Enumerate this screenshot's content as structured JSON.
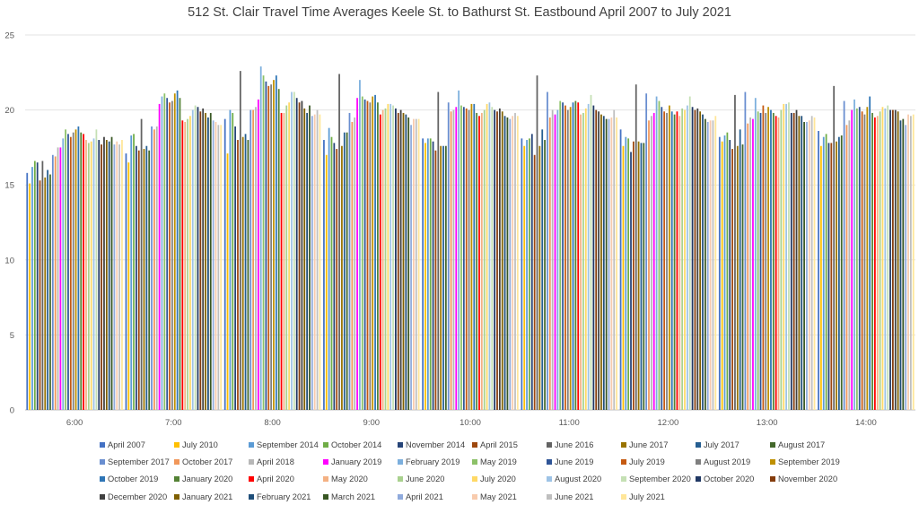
{
  "chart_data": {
    "type": "bar",
    "title": "512 St. Clair Travel Time Averages Keele St. to Bathurst St. Eastbound April 2007 to July 2021",
    "xlabel": "",
    "ylabel": "",
    "ylim": [
      0,
      25
    ],
    "yticks": [
      "0",
      "5",
      "10",
      "15",
      "20",
      "25"
    ],
    "grid": true,
    "legend_position": "bottom",
    "categories": [
      "6:00",
      "7:00",
      "8:00",
      "9:00",
      "10:00",
      "11:00",
      "12:00",
      "13:00",
      "14:00"
    ],
    "series": [
      {
        "name": "April 2007",
        "color": "#4472c4",
        "values": [
          15.8,
          17.1,
          19.4,
          18.0,
          18.1,
          18.1,
          18.7,
          18.2,
          18.6
        ]
      },
      {
        "name": "July 2010",
        "color": "#ffc000",
        "values": [
          15.1,
          16.5,
          17.1,
          17.0,
          17.8,
          17.6,
          17.6,
          17.9,
          17.6
        ]
      },
      {
        "name": "September 2014",
        "color": "#5b9bd5",
        "values": [
          16.2,
          18.3,
          20.0,
          18.8,
          18.1,
          18.0,
          18.2,
          18.3,
          18.2
        ]
      },
      {
        "name": "October 2014",
        "color": "#70ad47",
        "values": [
          16.6,
          18.4,
          19.8,
          18.2,
          18.1,
          18.1,
          18.1,
          18.5,
          18.4
        ]
      },
      {
        "name": "November 2014",
        "color": "#264478",
        "values": [
          16.5,
          17.6,
          18.9,
          17.8,
          17.9,
          18.4,
          17.2,
          18.0,
          17.8
        ]
      },
      {
        "name": "April 2015",
        "color": "#9e480e",
        "values": [
          15.3,
          17.3,
          18.0,
          17.4,
          17.3,
          17.0,
          17.9,
          17.4,
          17.8
        ]
      },
      {
        "name": "June 2016",
        "color": "#636363",
        "values": [
          16.6,
          19.4,
          22.6,
          22.4,
          21.2,
          22.3,
          21.7,
          21.0,
          21.6
        ]
      },
      {
        "name": "June 2017",
        "color": "#997300",
        "values": [
          15.5,
          17.4,
          18.2,
          17.6,
          17.6,
          17.6,
          17.9,
          17.6,
          17.9
        ]
      },
      {
        "name": "July 2017",
        "color": "#255e91",
        "values": [
          16.0,
          17.6,
          18.4,
          18.5,
          17.6,
          18.7,
          17.8,
          18.7,
          18.2
        ]
      },
      {
        "name": "August 2017",
        "color": "#43682b",
        "values": [
          15.7,
          17.3,
          18.0,
          18.5,
          17.6,
          18.0,
          17.8,
          17.7,
          18.3
        ]
      },
      {
        "name": "September 2017",
        "color": "#698ed0",
        "values": [
          17.0,
          18.9,
          20.0,
          19.8,
          20.5,
          21.2,
          21.1,
          21.2,
          20.6
        ]
      },
      {
        "name": "October 2017",
        "color": "#f1975a",
        "values": [
          16.9,
          18.7,
          20.0,
          19.2,
          19.9,
          19.5,
          19.3,
          19.1,
          19.0
        ]
      },
      {
        "name": "April 2018",
        "color": "#b7b7b7",
        "values": [
          17.5,
          18.9,
          20.2,
          19.5,
          20.0,
          20.0,
          19.6,
          19.5,
          19.3
        ]
      },
      {
        "name": "January 2019",
        "color": "#ff00ff",
        "values": [
          17.5,
          20.4,
          20.7,
          20.8,
          20.2,
          19.7,
          19.8,
          19.4,
          20.0
        ]
      },
      {
        "name": "February 2019",
        "color": "#7cafdd",
        "values": [
          18.1,
          20.9,
          22.9,
          22.0,
          21.3,
          20.0,
          20.9,
          20.8,
          20.7
        ]
      },
      {
        "name": "May 2019",
        "color": "#8cc168",
        "values": [
          18.7,
          21.1,
          22.3,
          20.9,
          20.3,
          20.6,
          20.6,
          19.9,
          20.1
        ]
      },
      {
        "name": "June 2019",
        "color": "#2f5597",
        "values": [
          18.4,
          20.8,
          21.9,
          20.7,
          20.2,
          20.5,
          20.2,
          19.8,
          20.2
        ]
      },
      {
        "name": "July 2019",
        "color": "#c55a11",
        "values": [
          18.2,
          20.5,
          21.6,
          20.6,
          20.1,
          20.3,
          19.9,
          20.3,
          19.9
        ]
      },
      {
        "name": "August 2019",
        "color": "#7f7f7f",
        "values": [
          18.5,
          20.6,
          21.7,
          20.5,
          20.0,
          20.0,
          19.8,
          19.8,
          19.7
        ]
      },
      {
        "name": "September 2019",
        "color": "#bf9000",
        "values": [
          18.7,
          21.1,
          22.0,
          20.9,
          20.4,
          20.2,
          20.3,
          20.2,
          20.2
        ]
      },
      {
        "name": "October 2019",
        "color": "#2e75b6",
        "values": [
          18.9,
          21.3,
          22.3,
          21.0,
          20.4,
          20.5,
          19.9,
          20.0,
          20.9
        ]
      },
      {
        "name": "January 2020",
        "color": "#548235",
        "values": [
          18.5,
          20.8,
          21.4,
          20.5,
          19.8,
          20.6,
          19.7,
          19.8,
          19.8
        ]
      },
      {
        "name": "April 2020",
        "color": "#ff0000",
        "values": [
          18.4,
          19.3,
          19.8,
          19.7,
          19.6,
          20.5,
          19.9,
          19.6,
          19.5
        ]
      },
      {
        "name": "May 2020",
        "color": "#f4b183",
        "values": [
          18.0,
          19.2,
          19.8,
          20.0,
          19.8,
          19.7,
          19.6,
          19.5,
          19.6
        ]
      },
      {
        "name": "June 2020",
        "color": "#a9d18e",
        "values": [
          17.8,
          19.4,
          20.3,
          20.1,
          20.0,
          19.8,
          20.1,
          20.0,
          19.9
        ]
      },
      {
        "name": "July 2020",
        "color": "#ffd966",
        "values": [
          17.9,
          19.6,
          20.5,
          20.4,
          20.4,
          20.1,
          20.0,
          20.4,
          20.2
        ]
      },
      {
        "name": "August 2020",
        "color": "#9dc3e6",
        "values": [
          18.1,
          20.0,
          21.2,
          20.4,
          20.5,
          20.4,
          20.3,
          20.4,
          20.1
        ]
      },
      {
        "name": "September 2020",
        "color": "#c5e0b4",
        "values": [
          18.7,
          20.3,
          21.2,
          20.3,
          20.2,
          21.0,
          20.9,
          20.5,
          20.3
        ]
      },
      {
        "name": "October 2020",
        "color": "#203864",
        "values": [
          18.0,
          20.2,
          20.8,
          20.1,
          20.0,
          20.3,
          20.2,
          19.8,
          20.0
        ]
      },
      {
        "name": "November 2020",
        "color": "#843c0c",
        "values": [
          17.7,
          19.9,
          20.5,
          19.8,
          19.9,
          20.0,
          20.0,
          19.8,
          20.0
        ]
      },
      {
        "name": "December 2020",
        "color": "#404040",
        "values": [
          18.2,
          20.1,
          20.6,
          20.0,
          20.1,
          19.9,
          20.1,
          20.0,
          20.0
        ]
      },
      {
        "name": "January 2021",
        "color": "#7f6000",
        "values": [
          18.0,
          19.8,
          20.1,
          19.8,
          19.9,
          19.7,
          19.9,
          19.6,
          19.9
        ]
      },
      {
        "name": "February 2021",
        "color": "#1f4e79",
        "values": [
          17.9,
          19.5,
          19.8,
          19.7,
          19.6,
          19.6,
          19.7,
          19.6,
          19.3
        ]
      },
      {
        "name": "March 2021",
        "color": "#385723",
        "values": [
          18.2,
          19.8,
          20.3,
          19.5,
          19.5,
          19.4,
          19.4,
          19.2,
          19.4
        ]
      },
      {
        "name": "April 2021",
        "color": "#8faadc",
        "values": [
          17.7,
          19.3,
          19.6,
          19.0,
          19.4,
          19.4,
          19.2,
          19.2,
          19.0
        ]
      },
      {
        "name": "May 2021",
        "color": "#f8cbad",
        "values": [
          17.9,
          19.2,
          19.7,
          19.4,
          19.6,
          19.5,
          19.3,
          19.3,
          19.7
        ]
      },
      {
        "name": "June 2021",
        "color": "#bfbfbf",
        "values": [
          17.7,
          19.0,
          20.0,
          19.4,
          19.8,
          20.0,
          19.3,
          19.6,
          19.6
        ]
      },
      {
        "name": "July 2021",
        "color": "#ffe699",
        "values": [
          18.0,
          19.0,
          19.7,
          19.4,
          19.6,
          19.5,
          19.6,
          19.5,
          19.7
        ]
      }
    ]
  }
}
